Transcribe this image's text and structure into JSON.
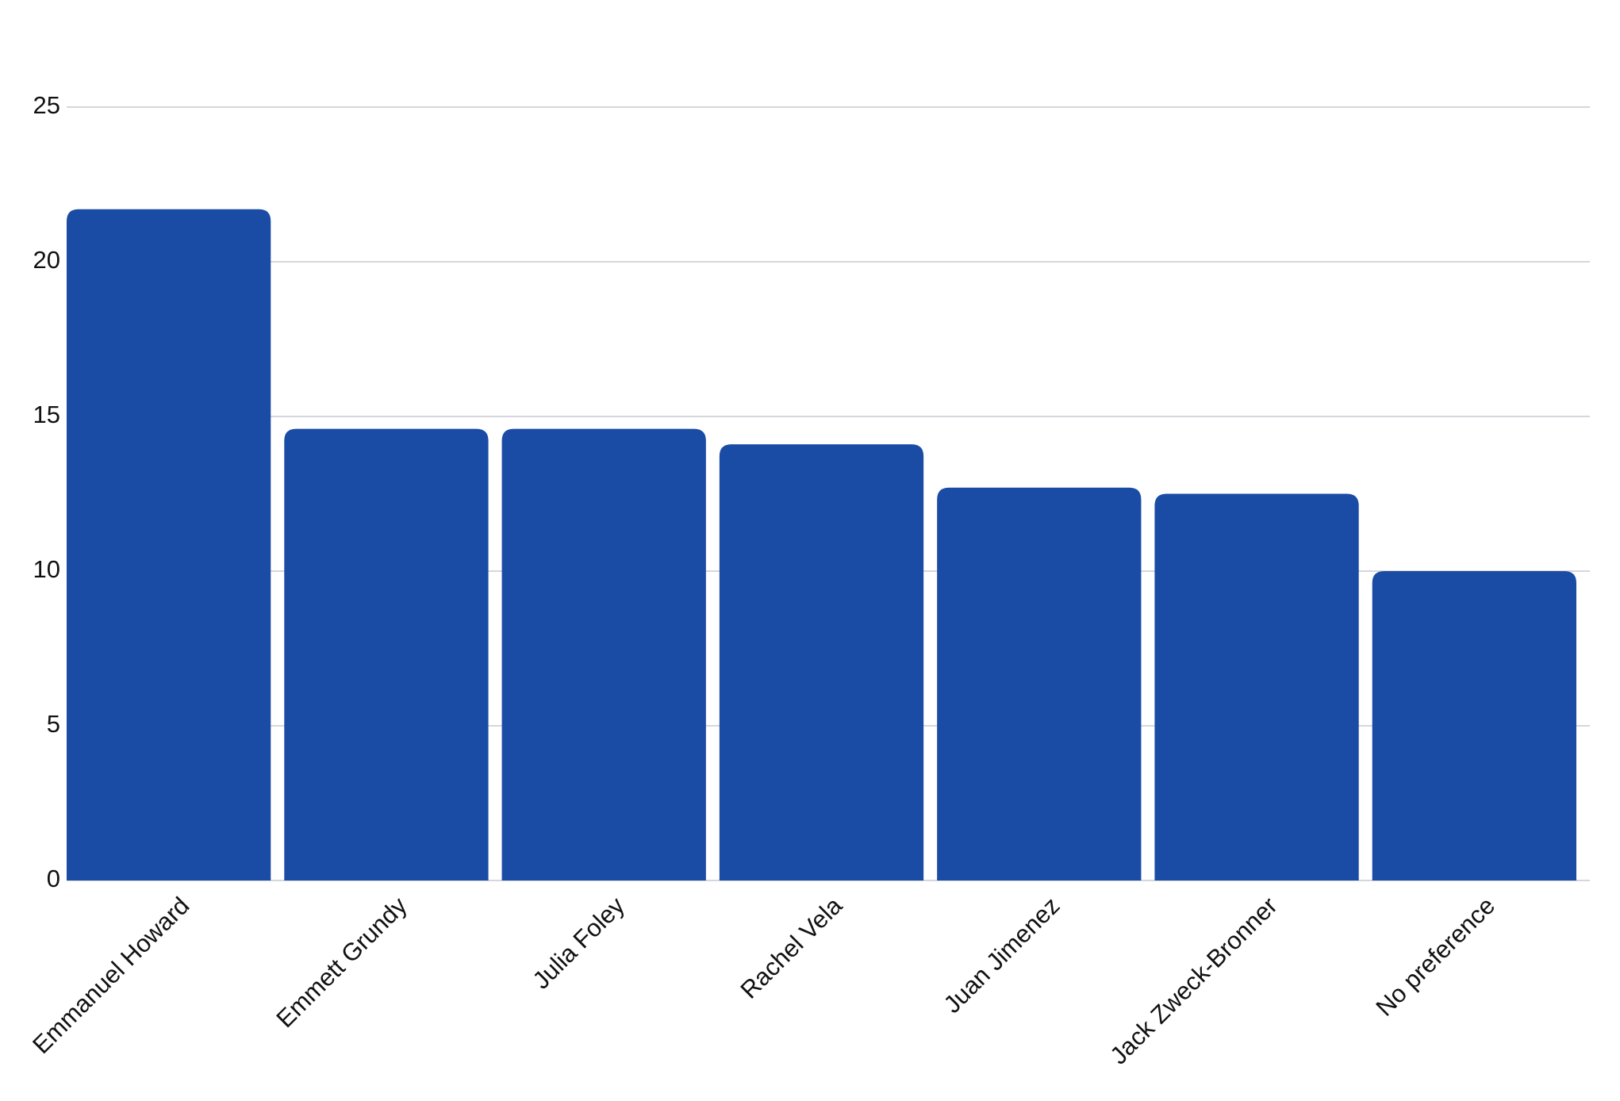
{
  "chart_data": {
    "type": "bar",
    "categories": [
      "Emmanuel Howard",
      "Emmett Grundy",
      "Julia Foley",
      "Rachel Vela",
      "Juan Jimenez",
      "Jack Zweck-Bronner",
      "No preference"
    ],
    "values": [
      21.7,
      14.6,
      14.6,
      14.1,
      12.7,
      12.5,
      10.0
    ],
    "color": "#1a4ca6",
    "ylim": [
      0,
      25
    ],
    "yticks": [
      0,
      5,
      10,
      15,
      20,
      25
    ],
    "grid": true
  }
}
